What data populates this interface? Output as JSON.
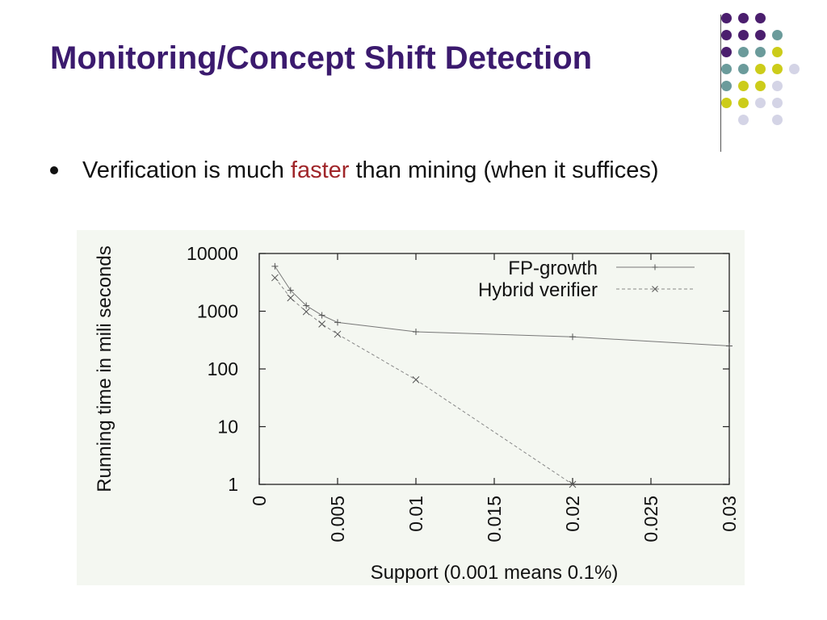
{
  "slide": {
    "title": "Monitoring/Concept Shift Detection",
    "bullet": {
      "before": "Verification is much ",
      "highlight": "faster",
      "after": " than mining (when it suffices)"
    }
  },
  "colors": {
    "title": "#3b1a6e",
    "highlight": "#a0262a",
    "dot_purple": "#4b1e6e",
    "dot_teal": "#6b9b9b",
    "dot_yellow": "#cccc1a",
    "dot_lavender": "#d4d4e6"
  },
  "chart_data": {
    "type": "line",
    "xlabel": "Support (0.001 means 0.1%)",
    "ylabel": "Running time in mili seconds",
    "xlim": [
      0,
      0.03
    ],
    "ylim": [
      1,
      10000
    ],
    "yscale": "log",
    "x_ticks": [
      "0",
      "0.005",
      "0.01",
      "0.015",
      "0.02",
      "0.025",
      "0.03"
    ],
    "y_ticks": [
      "1",
      "10",
      "100",
      "1000",
      "10000"
    ],
    "legend_position": "top-right",
    "series": [
      {
        "name": "FP-growth",
        "marker": "plus",
        "line": "solid",
        "x": [
          0.001,
          0.002,
          0.003,
          0.004,
          0.005,
          0.01,
          0.02,
          0.03
        ],
        "y": [
          6000,
          2300,
          1250,
          850,
          640,
          440,
          360,
          250
        ]
      },
      {
        "name": "Hybrid verifier",
        "marker": "cross",
        "line": "dashed",
        "x": [
          0.001,
          0.002,
          0.003,
          0.004,
          0.005,
          0.01,
          0.02
        ],
        "y": [
          3800,
          1700,
          980,
          600,
          400,
          65,
          1
        ]
      }
    ]
  }
}
